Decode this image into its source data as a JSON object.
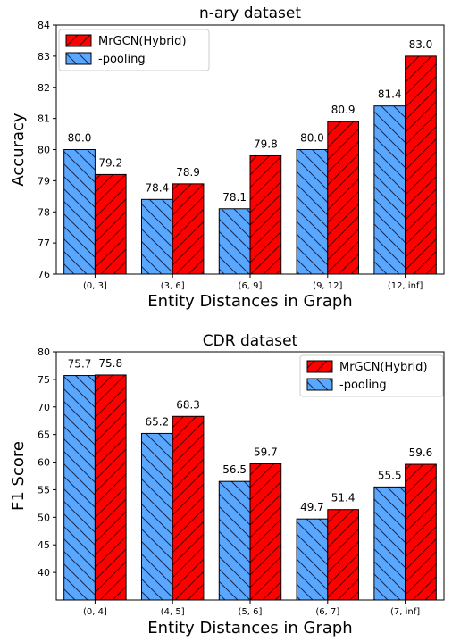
{
  "colors": {
    "hybrid": "#ff0000",
    "pooling": "#5aa7ff",
    "edge": "#000000"
  },
  "chart_data": [
    {
      "type": "bar",
      "title": "n-ary dataset",
      "xlabel": "Entity Distances in Graph",
      "ylabel": "Accuracy",
      "ylim": [
        76,
        84
      ],
      "yticks": [
        "76",
        "77",
        "78",
        "79",
        "80",
        "81",
        "82",
        "83",
        "84"
      ],
      "categories": [
        "(0, 3]",
        "(3, 6]",
        "(6, 9]",
        "(9, 12]",
        "(12, inf]"
      ],
      "legend_position": "top-left",
      "series": [
        {
          "name": "-pooling",
          "values": [
            80.0,
            78.4,
            78.1,
            80.0,
            81.4
          ],
          "labels": [
            "80.0",
            "78.4",
            "78.1",
            "80.0",
            "81.4"
          ]
        },
        {
          "name": "MrGCN(Hybrid)",
          "values": [
            79.2,
            78.9,
            79.8,
            80.9,
            83.0
          ],
          "labels": [
            "79.2",
            "78.9",
            "79.8",
            "80.9",
            "83.0"
          ]
        }
      ]
    },
    {
      "type": "bar",
      "title": "CDR dataset",
      "xlabel": "Entity Distances in Graph",
      "ylabel": "F1 Score",
      "ylim": [
        35,
        80
      ],
      "yticks": [
        "40",
        "45",
        "50",
        "55",
        "60",
        "65",
        "70",
        "75",
        "80"
      ],
      "categories": [
        "(0, 4]",
        "(4, 5]",
        "(5, 6]",
        "(6, 7]",
        "(7, inf]"
      ],
      "legend_position": "top-right",
      "series": [
        {
          "name": "-pooling",
          "values": [
            75.7,
            65.2,
            56.5,
            49.7,
            55.5
          ],
          "labels": [
            "75.7",
            "65.2",
            "56.5",
            "49.7",
            "55.5"
          ]
        },
        {
          "name": "MrGCN(Hybrid)",
          "values": [
            75.8,
            68.3,
            59.7,
            51.4,
            59.6
          ],
          "labels": [
            "75.8",
            "68.3",
            "59.7",
            "51.4",
            "59.6"
          ]
        }
      ]
    }
  ]
}
